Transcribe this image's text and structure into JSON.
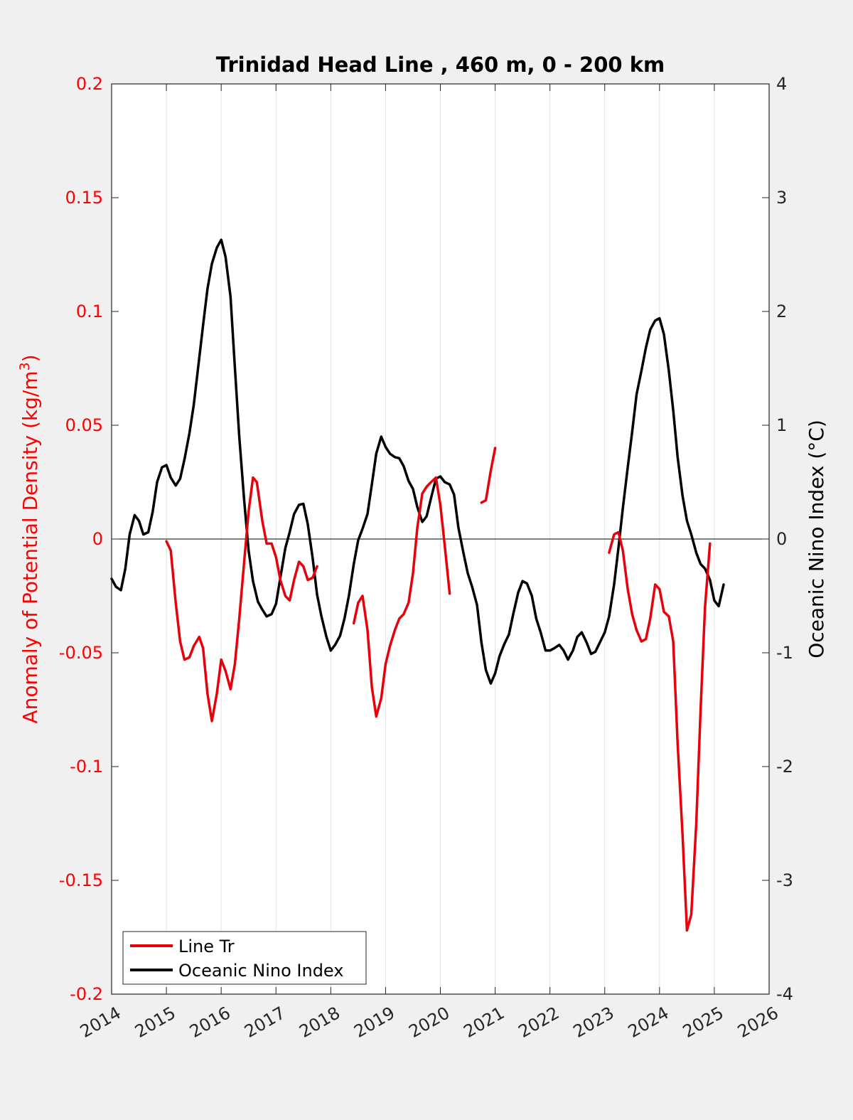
{
  "chart_data": {
    "type": "line",
    "title": "Trinidad Head Line , 460 m, 0 - 200 km",
    "xlabel": "",
    "ylabel_left_main": "Anomaly of Potential Density (kg/m",
    "ylabel_left_sup": "3",
    "ylabel_left_end": ")",
    "ylabel_right": "Oceanic Nino Index (°C)",
    "xlim": [
      2014,
      2026
    ],
    "ylim_left": [
      -0.2,
      0.2
    ],
    "ylim_right": [
      -4,
      4
    ],
    "x_ticks": [
      "2014",
      "2015",
      "2016",
      "2017",
      "2018",
      "2019",
      "2020",
      "2021",
      "2022",
      "2023",
      "2024",
      "2025",
      "2026"
    ],
    "y_left_ticks": [
      "-0.2",
      "-0.15",
      "-0.1",
      "-0.05",
      "0",
      "0.05",
      "0.1",
      "0.15",
      "0.2"
    ],
    "y_right_ticks": [
      "-4",
      "-3",
      "-2",
      "-1",
      "0",
      "1",
      "2",
      "3",
      "4"
    ],
    "grid": "vertical",
    "legend_position": "bottom-left",
    "colors": {
      "left_axis": "#ff0000",
      "line_tr": "#e8000b",
      "oni": "#000000"
    },
    "series": [
      {
        "name": "Line Tr",
        "axis": "left",
        "segments": [
          [
            [
              2015.0,
              -0.001
            ],
            [
              2015.08,
              -0.005
            ],
            [
              2015.17,
              -0.028
            ],
            [
              2015.25,
              -0.045
            ],
            [
              2015.33,
              -0.053
            ],
            [
              2015.42,
              -0.052
            ],
            [
              2015.5,
              -0.047
            ],
            [
              2015.6,
              -0.043
            ],
            [
              2015.67,
              -0.048
            ],
            [
              2015.75,
              -0.068
            ],
            [
              2015.83,
              -0.08
            ],
            [
              2015.92,
              -0.068
            ],
            [
              2016.0,
              -0.053
            ],
            [
              2016.08,
              -0.058
            ],
            [
              2016.17,
              -0.066
            ],
            [
              2016.25,
              -0.055
            ],
            [
              2016.33,
              -0.035
            ],
            [
              2016.42,
              -0.01
            ],
            [
              2016.5,
              0.012
            ],
            [
              2016.58,
              0.027
            ],
            [
              2016.65,
              0.025
            ],
            [
              2016.75,
              0.008
            ],
            [
              2016.83,
              -0.002
            ],
            [
              2016.92,
              -0.002
            ],
            [
              2017.0,
              -0.008
            ],
            [
              2017.08,
              -0.018
            ],
            [
              2017.17,
              -0.025
            ],
            [
              2017.25,
              -0.027
            ],
            [
              2017.33,
              -0.018
            ],
            [
              2017.42,
              -0.01
            ],
            [
              2017.5,
              -0.012
            ],
            [
              2017.58,
              -0.018
            ],
            [
              2017.67,
              -0.017
            ],
            [
              2017.75,
              -0.012
            ]
          ],
          [
            [
              2018.42,
              -0.037
            ],
            [
              2018.5,
              -0.028
            ],
            [
              2018.58,
              -0.025
            ],
            [
              2018.67,
              -0.04
            ],
            [
              2018.75,
              -0.065
            ],
            [
              2018.83,
              -0.078
            ],
            [
              2018.92,
              -0.07
            ],
            [
              2019.0,
              -0.055
            ],
            [
              2019.08,
              -0.047
            ],
            [
              2019.17,
              -0.04
            ],
            [
              2019.25,
              -0.035
            ],
            [
              2019.33,
              -0.033
            ],
            [
              2019.42,
              -0.028
            ],
            [
              2019.5,
              -0.015
            ],
            [
              2019.58,
              0.005
            ],
            [
              2019.67,
              0.02
            ],
            [
              2019.75,
              0.023
            ],
            [
              2019.83,
              0.025
            ],
            [
              2019.92,
              0.027
            ],
            [
              2020.0,
              0.015
            ],
            [
              2020.08,
              -0.003
            ],
            [
              2020.17,
              -0.024
            ]
          ],
          [
            [
              2020.75,
              0.016
            ],
            [
              2020.83,
              0.017
            ],
            [
              2020.92,
              0.03
            ],
            [
              2021.0,
              0.04
            ]
          ],
          [
            [
              2023.08,
              -0.006
            ],
            [
              2023.17,
              0.002
            ],
            [
              2023.25,
              0.003
            ],
            [
              2023.33,
              -0.005
            ],
            [
              2023.42,
              -0.022
            ],
            [
              2023.5,
              -0.033
            ],
            [
              2023.58,
              -0.04
            ],
            [
              2023.67,
              -0.045
            ],
            [
              2023.75,
              -0.044
            ],
            [
              2023.83,
              -0.035
            ],
            [
              2023.92,
              -0.02
            ],
            [
              2024.0,
              -0.022
            ],
            [
              2024.08,
              -0.032
            ],
            [
              2024.17,
              -0.034
            ],
            [
              2024.25,
              -0.045
            ],
            [
              2024.33,
              -0.09
            ],
            [
              2024.42,
              -0.13
            ],
            [
              2024.5,
              -0.172
            ],
            [
              2024.58,
              -0.165
            ],
            [
              2024.67,
              -0.125
            ],
            [
              2024.75,
              -0.075
            ],
            [
              2024.83,
              -0.03
            ],
            [
              2024.92,
              -0.002
            ]
          ]
        ]
      },
      {
        "name": "Oceanic Nino Index",
        "axis": "right",
        "segments": [
          [
            [
              2014.0,
              -0.35
            ],
            [
              2014.08,
              -0.42
            ],
            [
              2014.17,
              -0.45
            ],
            [
              2014.25,
              -0.26
            ],
            [
              2014.33,
              0.04
            ],
            [
              2014.42,
              0.21
            ],
            [
              2014.5,
              0.16
            ],
            [
              2014.58,
              0.04
            ],
            [
              2014.67,
              0.06
            ],
            [
              2014.75,
              0.24
            ],
            [
              2014.83,
              0.5
            ],
            [
              2014.92,
              0.63
            ],
            [
              2015.0,
              0.65
            ],
            [
              2015.08,
              0.54
            ],
            [
              2015.17,
              0.47
            ],
            [
              2015.25,
              0.53
            ],
            [
              2015.33,
              0.7
            ],
            [
              2015.42,
              0.93
            ],
            [
              2015.5,
              1.18
            ],
            [
              2015.58,
              1.51
            ],
            [
              2015.67,
              1.88
            ],
            [
              2015.75,
              2.2
            ],
            [
              2015.83,
              2.42
            ],
            [
              2015.92,
              2.56
            ],
            [
              2016.0,
              2.63
            ],
            [
              2016.08,
              2.48
            ],
            [
              2016.17,
              2.13
            ],
            [
              2016.25,
              1.51
            ],
            [
              2016.33,
              0.9
            ],
            [
              2016.42,
              0.34
            ],
            [
              2016.5,
              -0.1
            ],
            [
              2016.58,
              -0.37
            ],
            [
              2016.67,
              -0.55
            ],
            [
              2016.75,
              -0.62
            ],
            [
              2016.83,
              -0.68
            ],
            [
              2016.92,
              -0.66
            ],
            [
              2017.0,
              -0.57
            ],
            [
              2017.08,
              -0.34
            ],
            [
              2017.17,
              -0.08
            ],
            [
              2017.25,
              0.06
            ],
            [
              2017.33,
              0.22
            ],
            [
              2017.42,
              0.3
            ],
            [
              2017.5,
              0.31
            ],
            [
              2017.58,
              0.13
            ],
            [
              2017.67,
              -0.17
            ],
            [
              2017.75,
              -0.49
            ],
            [
              2017.83,
              -0.68
            ],
            [
              2017.92,
              -0.86
            ],
            [
              2018.0,
              -0.98
            ],
            [
              2018.08,
              -0.93
            ],
            [
              2018.17,
              -0.85
            ],
            [
              2018.25,
              -0.7
            ],
            [
              2018.33,
              -0.5
            ],
            [
              2018.42,
              -0.22
            ],
            [
              2018.5,
              -0.01
            ],
            [
              2018.58,
              0.09
            ],
            [
              2018.67,
              0.22
            ],
            [
              2018.75,
              0.48
            ],
            [
              2018.83,
              0.75
            ],
            [
              2018.92,
              0.9
            ],
            [
              2019.0,
              0.81
            ],
            [
              2019.08,
              0.75
            ],
            [
              2019.17,
              0.72
            ],
            [
              2019.25,
              0.71
            ],
            [
              2019.33,
              0.64
            ],
            [
              2019.42,
              0.51
            ],
            [
              2019.5,
              0.44
            ],
            [
              2019.58,
              0.28
            ],
            [
              2019.67,
              0.15
            ],
            [
              2019.75,
              0.2
            ],
            [
              2019.83,
              0.36
            ],
            [
              2019.92,
              0.53
            ],
            [
              2020.0,
              0.55
            ],
            [
              2020.08,
              0.5
            ],
            [
              2020.17,
              0.48
            ],
            [
              2020.25,
              0.39
            ],
            [
              2020.33,
              0.1
            ],
            [
              2020.42,
              -0.12
            ],
            [
              2020.5,
              -0.3
            ],
            [
              2020.58,
              -0.42
            ],
            [
              2020.67,
              -0.58
            ],
            [
              2020.75,
              -0.91
            ],
            [
              2020.83,
              -1.15
            ],
            [
              2020.92,
              -1.27
            ],
            [
              2021.0,
              -1.18
            ],
            [
              2021.08,
              -1.03
            ],
            [
              2021.17,
              -0.92
            ],
            [
              2021.25,
              -0.84
            ],
            [
              2021.33,
              -0.66
            ],
            [
              2021.42,
              -0.47
            ],
            [
              2021.5,
              -0.37
            ],
            [
              2021.58,
              -0.39
            ],
            [
              2021.67,
              -0.5
            ],
            [
              2021.75,
              -0.7
            ],
            [
              2021.83,
              -0.82
            ],
            [
              2021.92,
              -0.98
            ],
            [
              2022.0,
              -0.98
            ],
            [
              2022.08,
              -0.96
            ],
            [
              2022.17,
              -0.93
            ],
            [
              2022.25,
              -0.98
            ],
            [
              2022.33,
              -1.06
            ],
            [
              2022.42,
              -0.98
            ],
            [
              2022.5,
              -0.86
            ],
            [
              2022.58,
              -0.82
            ],
            [
              2022.67,
              -0.91
            ],
            [
              2022.75,
              -1.01
            ],
            [
              2022.83,
              -0.99
            ],
            [
              2022.92,
              -0.9
            ],
            [
              2023.0,
              -0.82
            ],
            [
              2023.08,
              -0.68
            ],
            [
              2023.17,
              -0.4
            ],
            [
              2023.25,
              -0.08
            ],
            [
              2023.33,
              0.27
            ],
            [
              2023.42,
              0.63
            ],
            [
              2023.5,
              0.94
            ],
            [
              2023.58,
              1.27
            ],
            [
              2023.67,
              1.48
            ],
            [
              2023.75,
              1.68
            ],
            [
              2023.83,
              1.84
            ],
            [
              2023.92,
              1.92
            ],
            [
              2024.0,
              1.94
            ],
            [
              2024.08,
              1.8
            ],
            [
              2024.17,
              1.48
            ],
            [
              2024.25,
              1.13
            ],
            [
              2024.33,
              0.72
            ],
            [
              2024.42,
              0.38
            ],
            [
              2024.5,
              0.16
            ],
            [
              2024.58,
              0.04
            ],
            [
              2024.67,
              -0.12
            ],
            [
              2024.75,
              -0.22
            ],
            [
              2024.83,
              -0.26
            ],
            [
              2024.92,
              -0.36
            ],
            [
              2025.0,
              -0.54
            ],
            [
              2025.08,
              -0.59
            ],
            [
              2025.17,
              -0.4
            ]
          ]
        ]
      }
    ]
  }
}
